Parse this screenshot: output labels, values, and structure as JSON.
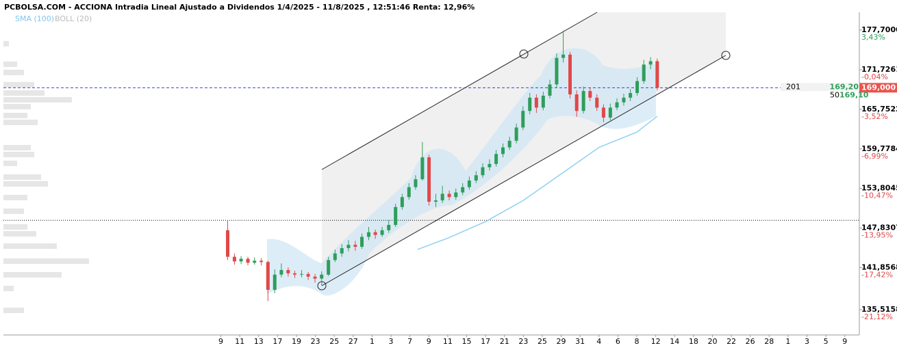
{
  "header": {
    "title": "PCBOLSA.COM - ACCIONA Intradia Lineal Ajustado a Dividendos 1/4/2025 - 11/8/2025 , 12:51:46 Renta: 12,96%",
    "legend": [
      "SMA (100)",
      "BOLL (20)"
    ]
  },
  "chart_data": {
    "type": "candlestick",
    "xlim": [
      -11.5,
      33.77
    ],
    "ylim": [
      131.7,
      180.38
    ],
    "yticks": [
      {
        "value": 177.7,
        "label": "177,7000"
      },
      {
        "value": 171.7261,
        "label": "171,7261"
      },
      {
        "value": 165.7522,
        "label": "165,7522"
      },
      {
        "value": 159.7784,
        "label": "159,7784"
      },
      {
        "value": 153.8045,
        "label": "153,8045"
      },
      {
        "value": 147.8307,
        "label": "147,8307"
      },
      {
        "value": 141.8568,
        "label": "141,8568"
      },
      {
        "value": 135.5158,
        "label": "135,5158"
      }
    ],
    "ytick_changes": [
      "3,43%",
      "-0,04%",
      "-3,52%",
      "-6,99%",
      "-10,47%",
      "-13,95%",
      "-17,42%",
      "-21,12%"
    ],
    "xticks": [
      {
        "value": 0,
        "label": "9"
      },
      {
        "value": 1,
        "label": "11"
      },
      {
        "value": 2,
        "label": "13"
      },
      {
        "value": 3,
        "label": "17"
      },
      {
        "value": 4,
        "label": "19"
      },
      {
        "value": 5,
        "label": "23"
      },
      {
        "value": 6,
        "label": "25"
      },
      {
        "value": 7,
        "label": "27"
      },
      {
        "value": 8,
        "label": "1"
      },
      {
        "value": 9,
        "label": "3"
      },
      {
        "value": 10,
        "label": "7"
      },
      {
        "value": 11,
        "label": "9"
      },
      {
        "value": 12,
        "label": "11"
      },
      {
        "value": 13,
        "label": "15"
      },
      {
        "value": 14,
        "label": "17"
      },
      {
        "value": 15,
        "label": "21"
      },
      {
        "value": 16,
        "label": "23"
      },
      {
        "value": 17,
        "label": "25"
      },
      {
        "value": 18,
        "label": "29"
      },
      {
        "value": 19,
        "label": "31"
      },
      {
        "value": 20,
        "label": "4"
      },
      {
        "value": 21,
        "label": "6"
      },
      {
        "value": 22,
        "label": "8"
      },
      {
        "value": 23,
        "label": "12"
      },
      {
        "value": 24,
        "label": "14"
      },
      {
        "value": 25,
        "label": "18"
      },
      {
        "value": 26,
        "label": "20"
      },
      {
        "value": 27,
        "label": "22"
      },
      {
        "value": 28,
        "label": "26"
      },
      {
        "value": 29,
        "label": "28"
      },
      {
        "value": 30,
        "label": "1"
      },
      {
        "value": 31,
        "label": "3"
      },
      {
        "value": 32,
        "label": "5"
      },
      {
        "value": 33,
        "label": "9"
      }
    ],
    "candles": [
      [
        0.36,
        147.5,
        149.0,
        143.0,
        143.5
      ],
      [
        0.72,
        143.5,
        144.0,
        142.3,
        142.8
      ],
      [
        1.07,
        142.8,
        143.6,
        142.4,
        143.2
      ],
      [
        1.43,
        143.2,
        143.5,
        142.2,
        142.6
      ],
      [
        1.78,
        142.6,
        143.4,
        142.3,
        142.9
      ],
      [
        2.14,
        142.9,
        143.3,
        142.2,
        142.7
      ],
      [
        2.49,
        142.7,
        142.9,
        136.8,
        138.5
      ],
      [
        2.85,
        138.5,
        141.6,
        138.0,
        140.8
      ],
      [
        3.2,
        140.8,
        142.5,
        140.4,
        141.5
      ],
      [
        3.56,
        141.5,
        141.9,
        140.5,
        141.0
      ],
      [
        3.91,
        141.0,
        141.4,
        140.3,
        140.8
      ],
      [
        4.27,
        140.8,
        141.5,
        140.4,
        140.9
      ],
      [
        4.62,
        140.9,
        141.2,
        140.0,
        140.5
      ],
      [
        4.98,
        140.5,
        140.9,
        139.6,
        140.2
      ],
      [
        5.33,
        140.2,
        141.3,
        139.2,
        140.8
      ],
      [
        5.69,
        140.8,
        143.5,
        140.6,
        143.0
      ],
      [
        6.04,
        143.0,
        144.6,
        142.7,
        144.0
      ],
      [
        6.4,
        144.0,
        145.4,
        143.5,
        144.8
      ],
      [
        6.75,
        144.8,
        146.0,
        144.3,
        145.3
      ],
      [
        7.11,
        145.3,
        145.9,
        144.4,
        145.0
      ],
      [
        7.46,
        145.0,
        147.0,
        144.7,
        146.5
      ],
      [
        7.82,
        146.5,
        148.0,
        146.0,
        147.2
      ],
      [
        8.17,
        147.2,
        147.6,
        146.2,
        146.8
      ],
      [
        8.53,
        146.8,
        148.0,
        146.5,
        147.5
      ],
      [
        8.88,
        147.5,
        149.0,
        147.1,
        148.3
      ],
      [
        9.24,
        148.3,
        151.5,
        148.0,
        151.0
      ],
      [
        9.59,
        151.0,
        153.0,
        150.6,
        152.5
      ],
      [
        9.95,
        152.5,
        154.6,
        152.1,
        154.0
      ],
      [
        10.3,
        154.0,
        155.8,
        153.6,
        155.2
      ],
      [
        10.66,
        155.2,
        160.8,
        155.0,
        158.5
      ],
      [
        11.01,
        158.5,
        158.9,
        151.2,
        151.8
      ],
      [
        11.37,
        151.8,
        153.0,
        151.0,
        152.0
      ],
      [
        11.72,
        152.0,
        154.2,
        151.6,
        153.0
      ],
      [
        12.08,
        153.0,
        153.5,
        152.0,
        152.5
      ],
      [
        12.43,
        152.5,
        153.8,
        152.1,
        153.2
      ],
      [
        12.79,
        153.2,
        154.6,
        152.8,
        154.0
      ],
      [
        13.14,
        154.0,
        155.6,
        153.6,
        155.0
      ],
      [
        13.5,
        155.0,
        156.4,
        154.6,
        155.8
      ],
      [
        13.85,
        155.8,
        157.6,
        155.4,
        157.0
      ],
      [
        14.21,
        157.0,
        158.2,
        156.5,
        157.5
      ],
      [
        14.56,
        157.5,
        159.6,
        157.1,
        159.0
      ],
      [
        14.92,
        159.0,
        160.6,
        158.5,
        160.0
      ],
      [
        15.27,
        160.0,
        161.6,
        159.6,
        161.0
      ],
      [
        15.63,
        161.0,
        163.6,
        160.6,
        163.0
      ],
      [
        15.98,
        163.0,
        166.2,
        162.6,
        165.5
      ],
      [
        16.34,
        165.5,
        168.2,
        165.0,
        167.5
      ],
      [
        16.69,
        167.5,
        168.0,
        165.2,
        166.0
      ],
      [
        17.05,
        166.0,
        168.4,
        165.6,
        167.8
      ],
      [
        17.4,
        167.8,
        170.2,
        167.4,
        169.5
      ],
      [
        17.76,
        169.5,
        174.2,
        169.0,
        173.5
      ],
      [
        18.11,
        173.5,
        177.6,
        172.8,
        174.0
      ],
      [
        18.47,
        174.0,
        174.4,
        167.4,
        168.0
      ],
      [
        18.82,
        168.0,
        168.6,
        164.6,
        165.5
      ],
      [
        19.18,
        165.5,
        169.2,
        165.1,
        168.5
      ],
      [
        19.53,
        168.5,
        169.0,
        167.0,
        167.5
      ],
      [
        19.89,
        167.5,
        168.0,
        165.5,
        166.0
      ],
      [
        20.24,
        166.0,
        166.5,
        163.8,
        164.5
      ],
      [
        20.6,
        164.5,
        166.6,
        164.1,
        166.0
      ],
      [
        20.95,
        166.0,
        167.4,
        165.6,
        166.8
      ],
      [
        21.31,
        166.8,
        168.1,
        166.3,
        167.5
      ],
      [
        21.66,
        167.5,
        168.8,
        167.0,
        168.2
      ],
      [
        22.02,
        168.2,
        170.6,
        167.8,
        170.0
      ],
      [
        22.37,
        170.0,
        173.2,
        169.6,
        172.5
      ],
      [
        22.73,
        172.5,
        173.6,
        171.8,
        173.0
      ],
      [
        23.08,
        173.0,
        173.4,
        168.6,
        169.0
      ]
    ],
    "sma": {
      "name": "SMA (100)",
      "color": "#8fd0f2",
      "x": [
        10.4,
        12.0,
        14.0,
        16.0,
        18.0,
        20.0,
        22.0,
        23.08
      ],
      "values": [
        144.6,
        146.3,
        148.8,
        152.0,
        156.0,
        160.0,
        162.3,
        164.7
      ]
    },
    "last_price": {
      "value": 169.0,
      "label": "169,000"
    },
    "reference_level": 149.0,
    "side_labels": [
      "201",
      "169,20",
      "50",
      "169,10"
    ]
  }
}
